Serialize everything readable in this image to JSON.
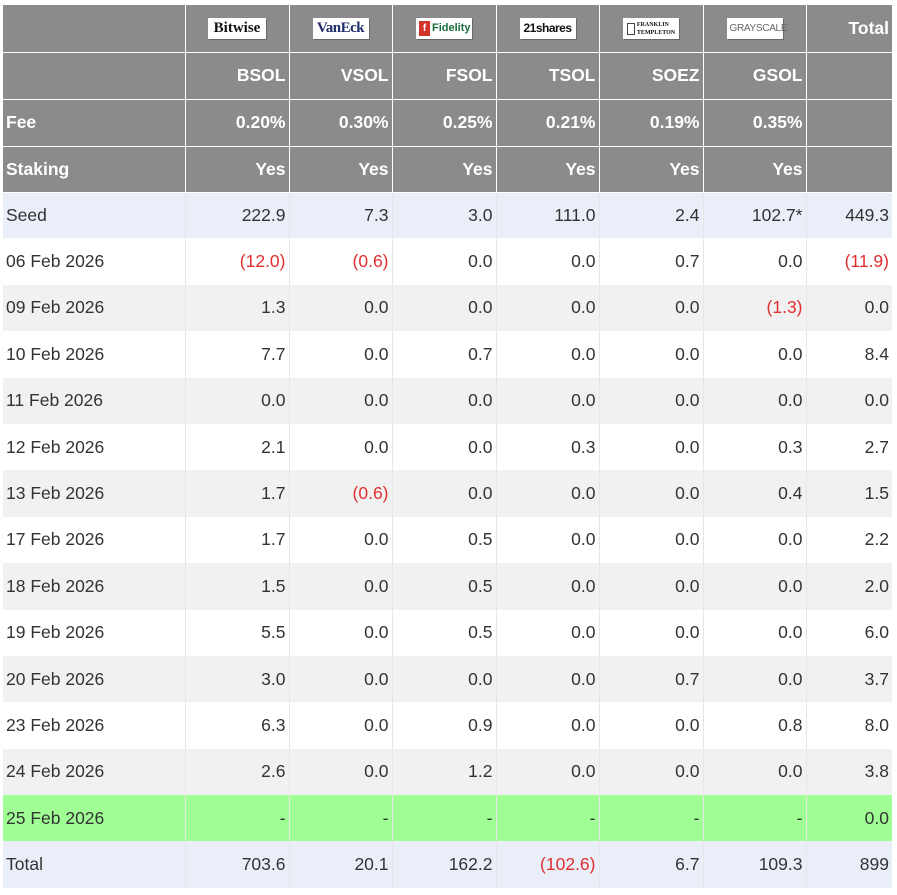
{
  "issuers": [
    {
      "logo": "Bitwise",
      "logo_icon": "bitwise-logo",
      "ticker": "BSOL",
      "fee": "0.20%",
      "staking": "Yes"
    },
    {
      "logo": "VanEck",
      "logo_icon": "vaneck-logo",
      "ticker": "VSOL",
      "fee": "0.30%",
      "staking": "Yes"
    },
    {
      "logo": "Fidelity",
      "logo_icon": "fidelity-logo",
      "ticker": "FSOL",
      "fee": "0.25%",
      "staking": "Yes"
    },
    {
      "logo": "21shares",
      "logo_icon": "21shares-logo",
      "ticker": "TSOL",
      "fee": "0.21%",
      "staking": "Yes"
    },
    {
      "logo": "FRANKLIN TEMPLETON",
      "logo_line1": "FRANKLIN",
      "logo_line2": "TEMPLETON",
      "logo_icon": "franklin-templeton-logo",
      "ticker": "SOEZ",
      "fee": "0.19%",
      "staking": "Yes"
    },
    {
      "logo": "GRAYSCALE",
      "logo_icon": "grayscale-logo",
      "ticker": "GSOL",
      "fee": "0.35%",
      "staking": "Yes"
    }
  ],
  "header": {
    "total_label": "Total",
    "fee_label": "Fee",
    "staking_label": "Staking"
  },
  "rows": [
    {
      "label": "Seed",
      "values": [
        "222.9",
        "7.3",
        "3.0",
        "111.0",
        "2.4",
        "102.7*"
      ],
      "total": "449.3",
      "shade": "blue"
    },
    {
      "label": "06 Feb 2026",
      "values": [
        "(12.0)",
        "(0.6)",
        "0.0",
        "0.0",
        "0.7",
        "0.0"
      ],
      "total": "(11.9)",
      "shade": "white"
    },
    {
      "label": "09 Feb 2026",
      "values": [
        "1.3",
        "0.0",
        "0.0",
        "0.0",
        "0.0",
        "(1.3)"
      ],
      "total": "0.0",
      "shade": "grey"
    },
    {
      "label": "10 Feb 2026",
      "values": [
        "7.7",
        "0.0",
        "0.7",
        "0.0",
        "0.0",
        "0.0"
      ],
      "total": "8.4",
      "shade": "white"
    },
    {
      "label": "11 Feb 2026",
      "values": [
        "0.0",
        "0.0",
        "0.0",
        "0.0",
        "0.0",
        "0.0"
      ],
      "total": "0.0",
      "shade": "grey"
    },
    {
      "label": "12 Feb 2026",
      "values": [
        "2.1",
        "0.0",
        "0.0",
        "0.3",
        "0.0",
        "0.3"
      ],
      "total": "2.7",
      "shade": "white"
    },
    {
      "label": "13 Feb 2026",
      "values": [
        "1.7",
        "(0.6)",
        "0.0",
        "0.0",
        "0.0",
        "0.4"
      ],
      "total": "1.5",
      "shade": "grey"
    },
    {
      "label": "17 Feb 2026",
      "values": [
        "1.7",
        "0.0",
        "0.5",
        "0.0",
        "0.0",
        "0.0"
      ],
      "total": "2.2",
      "shade": "white"
    },
    {
      "label": "18 Feb 2026",
      "values": [
        "1.5",
        "0.0",
        "0.5",
        "0.0",
        "0.0",
        "0.0"
      ],
      "total": "2.0",
      "shade": "grey"
    },
    {
      "label": "19 Feb 2026",
      "values": [
        "5.5",
        "0.0",
        "0.5",
        "0.0",
        "0.0",
        "0.0"
      ],
      "total": "6.0",
      "shade": "white"
    },
    {
      "label": "20 Feb 2026",
      "values": [
        "3.0",
        "0.0",
        "0.0",
        "0.0",
        "0.7",
        "0.0"
      ],
      "total": "3.7",
      "shade": "grey"
    },
    {
      "label": "23 Feb 2026",
      "values": [
        "6.3",
        "0.0",
        "0.9",
        "0.0",
        "0.0",
        "0.8"
      ],
      "total": "8.0",
      "shade": "white"
    },
    {
      "label": "24 Feb 2026",
      "values": [
        "2.6",
        "0.0",
        "1.2",
        "0.0",
        "0.0",
        "0.0"
      ],
      "total": "3.8",
      "shade": "grey"
    },
    {
      "label": "25 Feb 2026",
      "values": [
        "-",
        "-",
        "-",
        "-",
        "-",
        "-"
      ],
      "total": "0.0",
      "shade": "green"
    },
    {
      "label": "Total",
      "values": [
        "703.6",
        "20.1",
        "162.2",
        "(102.6)",
        "6.7",
        "109.3"
      ],
      "total": "899",
      "shade": "blue"
    }
  ],
  "colors": {
    "header_bg": "#8b8b8b",
    "seed_total_bg": "#eaeef8",
    "alt_row_bg": "#f1f1f1",
    "latest_row_bg": "#a0ff94",
    "negative_text": "#e03030",
    "fidelity_red": "#d3352b"
  }
}
